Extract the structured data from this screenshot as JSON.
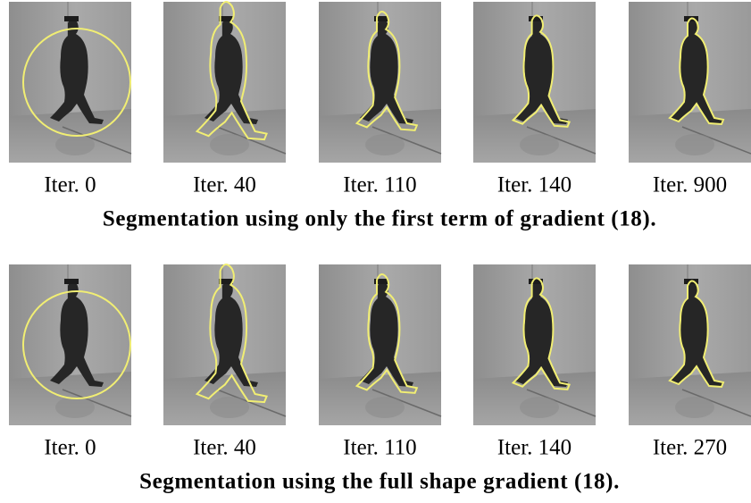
{
  "rows": [
    {
      "panels": [
        {
          "label": "Iter. 0"
        },
        {
          "label": "Iter. 40"
        },
        {
          "label": "Iter. 110"
        },
        {
          "label": "Iter. 140"
        },
        {
          "label": "Iter. 900"
        }
      ],
      "caption": "Segmentation using only the first term of gradient (18)."
    },
    {
      "panels": [
        {
          "label": "Iter. 0"
        },
        {
          "label": "Iter. 40"
        },
        {
          "label": "Iter. 110"
        },
        {
          "label": "Iter. 140"
        },
        {
          "label": "Iter. 270"
        }
      ],
      "caption": "Segmentation using the full shape gradient (18)."
    }
  ]
}
